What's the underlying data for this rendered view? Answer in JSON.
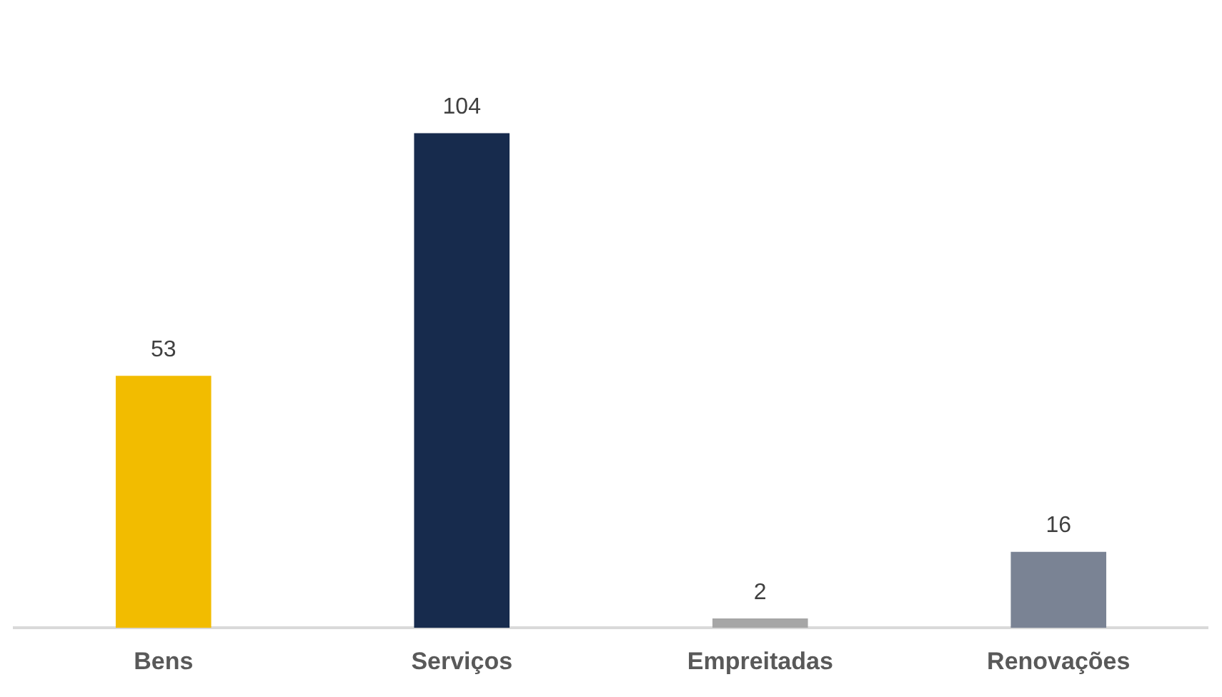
{
  "chart_data": {
    "type": "bar",
    "categories": [
      "Bens",
      "Serviços",
      "Empreitadas",
      "Renovações"
    ],
    "values": [
      53,
      104,
      2,
      16
    ],
    "colors": [
      "#f2bc00",
      "#172b4d",
      "#a6a6a6",
      "#7a8394"
    ],
    "data_labels": true,
    "grid": false,
    "legend": false
  }
}
